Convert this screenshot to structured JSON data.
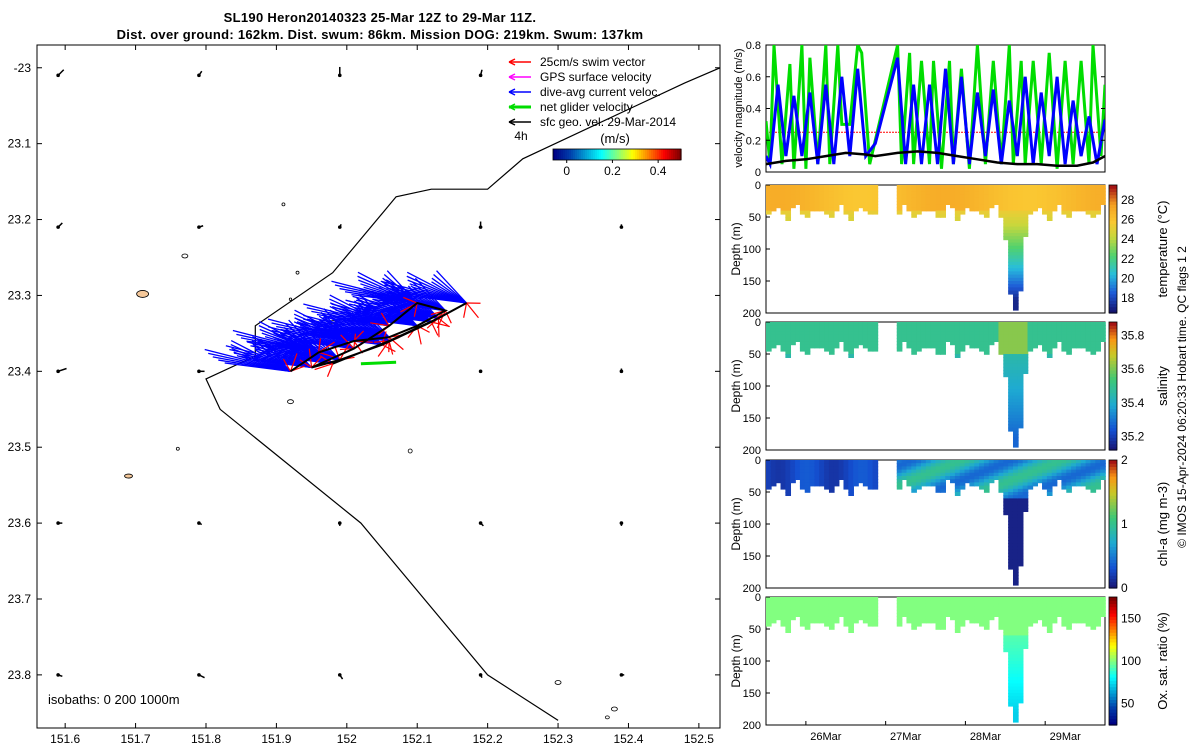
{
  "title": {
    "line1": "SL190 Heron20140323 25-Mar 12Z to 29-Mar 11Z.",
    "line2": "Dist. over ground: 162km. Dist. swum: 86km. Mission DOG: 219km. Swum: 137km"
  },
  "credit": "© IMOS 15-Apr-2024 06:20:33 Hobart time. QC flags 1  2",
  "chart_data": [
    {
      "type": "scatter",
      "name": "map",
      "x_ticks": [
        "151.6",
        "151.7",
        "151.8",
        "151.9",
        "152",
        "152.1",
        "152.2",
        "152.3",
        "152.4",
        "152.5"
      ],
      "y_ticks": [
        "-23",
        "23.1",
        "23.2",
        "23.3",
        "23.4",
        "23.5",
        "23.6",
        "23.7",
        "23.8"
      ],
      "xlim": [
        151.56,
        152.53
      ],
      "ylim": [
        -23.87,
        -22.97
      ],
      "legend": [
        {
          "label": "25cm/s swim vector",
          "color": "#ff0000"
        },
        {
          "label": "GPS surface velocity",
          "color": "#ff00ff"
        },
        {
          "label": "dive-avg current veloc.",
          "color": "#0000ff"
        },
        {
          "label": "net glider velocity",
          "color": "#00dd00"
        },
        {
          "label": "sfc geo. vel. 29-Mar-2014",
          "color": "#000000"
        }
      ],
      "vector_scale_label": "4h",
      "colorbar": {
        "label": "(m/s)",
        "ticks": [
          "0",
          "0.2",
          "0.4"
        ],
        "range": [
          -0.06,
          0.5
        ]
      },
      "isobath_label": "isobaths: 0   200   1000m",
      "coast_path": [
        [
          152.53,
          -23.0
        ],
        [
          152.48,
          -23.02
        ],
        [
          152.25,
          -23.12
        ],
        [
          152.2,
          -23.16
        ],
        [
          152.12,
          -23.16
        ],
        [
          152.07,
          -23.17
        ],
        [
          151.98,
          -23.27
        ],
        [
          151.87,
          -23.34
        ],
        [
          151.87,
          -23.38
        ],
        [
          151.8,
          -23.41
        ],
        [
          151.82,
          -23.45
        ],
        [
          152.02,
          -23.6
        ],
        [
          152.2,
          -23.8
        ],
        [
          152.3,
          -23.86
        ]
      ],
      "glider_track": [
        [
          151.92,
          -23.4
        ],
        [
          151.96,
          -23.375
        ],
        [
          152.01,
          -23.36
        ],
        [
          152.06,
          -23.355
        ],
        [
          152.1,
          -23.34
        ],
        [
          152.14,
          -23.32
        ],
        [
          152.1,
          -23.31
        ],
        [
          152.06,
          -23.34
        ],
        [
          152.01,
          -23.37
        ],
        [
          151.95,
          -23.395
        ],
        [
          151.99,
          -23.385
        ],
        [
          152.05,
          -23.365
        ],
        [
          152.12,
          -23.335
        ],
        [
          152.17,
          -23.31
        ],
        [
          152.13,
          -23.33
        ],
        [
          152.06,
          -23.36
        ],
        [
          151.98,
          -23.39
        ]
      ],
      "sfc_vectors": [
        {
          "lon": 151.59,
          "lat": -23.01,
          "u": 0.02,
          "v": 0.02
        },
        {
          "lon": 151.79,
          "lat": -23.01,
          "u": 0.01,
          "v": 0.015
        },
        {
          "lon": 151.99,
          "lat": -23.01,
          "u": 0.0,
          "v": 0.03
        },
        {
          "lon": 152.19,
          "lat": -23.01,
          "u": 0.005,
          "v": 0.02
        },
        {
          "lon": 151.59,
          "lat": -23.21,
          "u": 0.015,
          "v": 0.015
        },
        {
          "lon": 151.79,
          "lat": -23.21,
          "u": 0.015,
          "v": 0.005
        },
        {
          "lon": 151.99,
          "lat": -23.21,
          "u": 0.005,
          "v": 0.01
        },
        {
          "lon": 152.19,
          "lat": -23.21,
          "u": 0.0,
          "v": 0.02
        },
        {
          "lon": 152.39,
          "lat": -23.21,
          "u": 0.0,
          "v": 0.01
        },
        {
          "lon": 151.59,
          "lat": -23.4,
          "u": 0.03,
          "v": 0.01
        },
        {
          "lon": 151.79,
          "lat": -23.4,
          "u": 0.02,
          "v": 0.0
        },
        {
          "lon": 152.19,
          "lat": -23.4,
          "u": 0.0,
          "v": 0.005
        },
        {
          "lon": 152.39,
          "lat": -23.4,
          "u": 0.0,
          "v": 0.01
        },
        {
          "lon": 151.59,
          "lat": -23.6,
          "u": 0.015,
          "v": 0.0
        },
        {
          "lon": 151.79,
          "lat": -23.6,
          "u": 0.01,
          "v": -0.005
        },
        {
          "lon": 151.99,
          "lat": -23.6,
          "u": 0.0,
          "v": -0.01
        },
        {
          "lon": 152.19,
          "lat": -23.6,
          "u": 0.01,
          "v": -0.01
        },
        {
          "lon": 152.39,
          "lat": -23.6,
          "u": 0.0,
          "v": -0.01
        },
        {
          "lon": 151.59,
          "lat": -23.8,
          "u": 0.015,
          "v": -0.005
        },
        {
          "lon": 151.79,
          "lat": -23.8,
          "u": 0.02,
          "v": -0.01
        },
        {
          "lon": 151.99,
          "lat": -23.8,
          "u": 0.01,
          "v": -0.015
        },
        {
          "lon": 152.19,
          "lat": -23.8,
          "u": 0.005,
          "v": -0.01
        },
        {
          "lon": 152.39,
          "lat": -23.8,
          "u": 0.01,
          "v": 0.0
        }
      ]
    },
    {
      "type": "line",
      "name": "velocity",
      "ylabel": "velocity magnitude (m/s)",
      "y_ticks": [
        "0",
        "0.2",
        "0.4",
        "0.6",
        "0.8"
      ],
      "ylim": [
        0,
        0.8
      ],
      "xlim": [
        25.5,
        29.75
      ],
      "series": [
        {
          "name": "swim",
          "color": "#ff0000",
          "x": [
            25.5,
            29.75
          ],
          "y": [
            0.25,
            0.25
          ]
        },
        {
          "name": "net glider velocity",
          "color": "#00dd00",
          "x": [
            25.5,
            25.55,
            25.6,
            25.7,
            25.8,
            25.85,
            25.95,
            26.0,
            26.05,
            26.15,
            26.25,
            26.3,
            26.4,
            26.45,
            26.55,
            26.65,
            26.7,
            26.8,
            26.87,
            27.15,
            27.2,
            27.3,
            27.35,
            27.45,
            27.55,
            27.6,
            27.7,
            27.8,
            27.85,
            27.95,
            28.05,
            28.15,
            28.25,
            28.35,
            28.45,
            28.55,
            28.6,
            28.7,
            28.75,
            28.85,
            28.95,
            29.05,
            29.15,
            29.25,
            29.35,
            29.45,
            29.55,
            29.6,
            29.7,
            29.75
          ],
          "y": [
            0.32,
            0.05,
            0.8,
            0.05,
            0.68,
            0.02,
            0.8,
            0.02,
            0.72,
            0.05,
            0.8,
            0.05,
            0.8,
            0.3,
            0.3,
            0.8,
            0.75,
            0.05,
            0.2,
            0.8,
            0.05,
            0.75,
            0.05,
            0.7,
            0.05,
            0.7,
            0.02,
            0.7,
            0.05,
            0.65,
            0.02,
            0.8,
            0.05,
            0.7,
            0.05,
            0.8,
            0.05,
            0.7,
            0.05,
            0.7,
            0.05,
            0.75,
            0.02,
            0.7,
            0.05,
            0.7,
            0.05,
            0.8,
            0.1,
            0.55
          ]
        },
        {
          "name": "dive-avg current veloc.",
          "color": "#0000ff",
          "x": [
            25.5,
            25.55,
            25.65,
            25.75,
            25.85,
            25.95,
            26.05,
            26.15,
            26.25,
            26.35,
            26.45,
            26.55,
            26.65,
            26.75,
            26.87,
            27.15,
            27.25,
            27.35,
            27.45,
            27.55,
            27.65,
            27.75,
            27.85,
            27.95,
            28.05,
            28.15,
            28.25,
            28.35,
            28.45,
            28.55,
            28.65,
            28.75,
            28.85,
            28.95,
            29.05,
            29.15,
            29.25,
            29.35,
            29.45,
            29.55,
            29.65,
            29.75
          ],
          "y": [
            0.1,
            0.05,
            0.55,
            0.1,
            0.48,
            0.1,
            0.5,
            0.05,
            0.55,
            0.05,
            0.6,
            0.1,
            0.65,
            0.1,
            0.18,
            0.72,
            0.05,
            0.55,
            0.05,
            0.55,
            0.05,
            0.65,
            0.05,
            0.6,
            0.05,
            0.5,
            0.1,
            0.52,
            0.05,
            0.45,
            0.1,
            0.6,
            0.05,
            0.5,
            0.1,
            0.6,
            0.05,
            0.45,
            0.1,
            0.35,
            0.05,
            0.33
          ]
        },
        {
          "name": "sfc geo. vel.",
          "color": "#000000",
          "x": [
            25.5,
            25.75,
            26.0,
            26.25,
            26.5,
            26.75,
            26.87,
            27.15,
            27.4,
            27.65,
            27.9,
            28.15,
            28.4,
            28.65,
            28.9,
            29.15,
            29.4,
            29.6,
            29.75
          ],
          "y": [
            0.05,
            0.07,
            0.08,
            0.1,
            0.12,
            0.11,
            0.1,
            0.12,
            0.13,
            0.12,
            0.1,
            0.08,
            0.06,
            0.05,
            0.05,
            0.04,
            0.04,
            0.06,
            0.1
          ]
        }
      ]
    },
    {
      "type": "heatmap",
      "name": "temperature",
      "ylabel": "Depth (m)",
      "y_ticks": [
        "0",
        "50",
        "100",
        "150",
        "200"
      ],
      "ylim": [
        0,
        200
      ],
      "colorbar": {
        "label": "temperature (°C)",
        "ticks": [
          "18",
          "20",
          "22",
          "24",
          "26",
          "28"
        ],
        "range": [
          16.5,
          29.5
        ]
      },
      "surface_value": 26.8,
      "deep_value": 17
    },
    {
      "type": "heatmap",
      "name": "salinity",
      "ylabel": "Depth (m)",
      "y_ticks": [
        "0",
        "50",
        "100",
        "150",
        "200"
      ],
      "ylim": [
        0,
        200
      ],
      "colorbar": {
        "label": "salinity",
        "ticks": [
          "35.2",
          "35.4",
          "35.6",
          "35.8"
        ],
        "range": [
          35.12,
          35.88
        ]
      },
      "surface_value": 35.5,
      "deep_value": 35.27
    },
    {
      "type": "heatmap",
      "name": "chlorophyll",
      "ylabel": "Depth (m)",
      "y_ticks": [
        "0",
        "50",
        "100",
        "150",
        "200"
      ],
      "ylim": [
        0,
        200
      ],
      "colorbar": {
        "label": "chl-a (mg m-3)",
        "ticks": [
          "0",
          "1",
          "2"
        ],
        "range": [
          0,
          2
        ]
      },
      "surface_value": 0.35,
      "deep_value": 0.05
    },
    {
      "type": "heatmap",
      "name": "oxygen",
      "ylabel": "Depth (m)",
      "y_ticks": [
        "0",
        "50",
        "100",
        "150",
        "200"
      ],
      "ylim": [
        0,
        200
      ],
      "colorbar": {
        "label": "Ox. sat. ratio (%)",
        "ticks": [
          "50",
          "100",
          "150"
        ],
        "range": [
          25,
          175
        ]
      },
      "surface_value": 100,
      "deep_value": 72
    },
    {
      "type": "axis",
      "name": "time",
      "ticks": [
        {
          "label": "26Mar",
          "day": 26
        },
        {
          "label": "27Mar",
          "day": 27
        },
        {
          "label": "28Mar",
          "day": 28
        },
        {
          "label": "29Mar",
          "day": 29
        }
      ],
      "gap_days": [
        26.87,
        27.15
      ],
      "dip_days": [
        28.5,
        28.75
      ]
    }
  ]
}
